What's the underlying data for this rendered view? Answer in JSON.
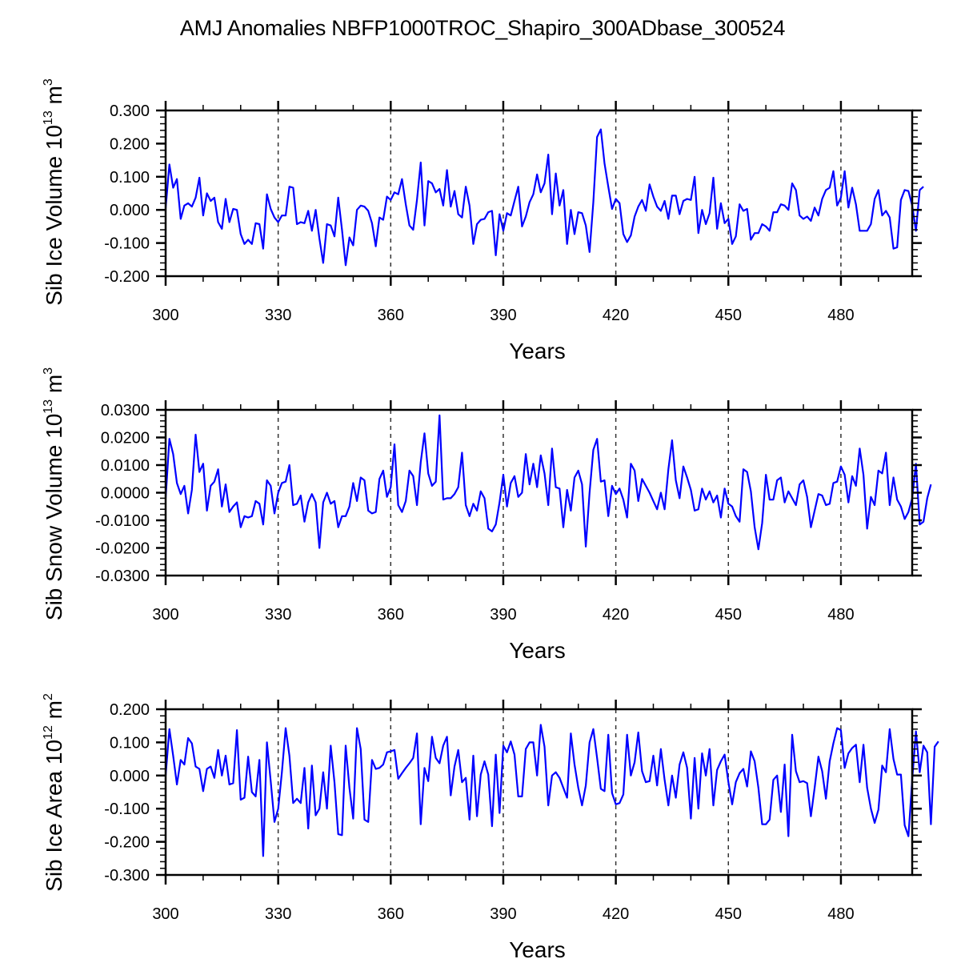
{
  "title": "AMJ Anomalies NBFP1000TROC_Shapiro_300ADbase_300524",
  "chart_data": [
    {
      "type": "line",
      "ylabel": "Sib Ice Volume 10",
      "ylabel_exp": "13",
      "ylabel_unit": " m",
      "ylabel_unit_exp": "3",
      "xlabel": "Years",
      "xlim": [
        300,
        499
      ],
      "ylim": [
        -0.2,
        0.3
      ],
      "yticks": [
        -0.2,
        -0.1,
        0.0,
        0.1,
        0.2,
        0.3
      ],
      "ytick_labels": [
        "-0.200",
        "-0.100",
        "0.000",
        "0.100",
        "0.200",
        "0.300"
      ],
      "xticks": [
        300,
        330,
        360,
        390,
        420,
        450,
        480
      ],
      "xtick_labels": [
        "300",
        "330",
        "360",
        "390",
        "420",
        "450",
        "480"
      ],
      "vlines": [
        330,
        360,
        390,
        420,
        450,
        480
      ],
      "line_color": "#0000ff",
      "x_start": 300,
      "values": [
        0.005,
        0.137,
        0.067,
        0.093,
        -0.027,
        0.013,
        0.02,
        0.01,
        0.037,
        0.097,
        -0.017,
        0.05,
        0.027,
        0.037,
        -0.037,
        -0.057,
        0.033,
        -0.037,
        0.003,
        0.0,
        -0.073,
        -0.103,
        -0.09,
        -0.103,
        -0.04,
        -0.043,
        -0.117,
        0.047,
        0.003,
        -0.023,
        -0.037,
        -0.017,
        -0.017,
        0.07,
        0.067,
        -0.043,
        -0.037,
        -0.04,
        -0.003,
        -0.063,
        0.0,
        -0.087,
        -0.16,
        -0.043,
        -0.047,
        -0.08,
        0.037,
        -0.06,
        -0.167,
        -0.083,
        -0.107,
        0.0,
        0.013,
        0.01,
        -0.003,
        -0.04,
        -0.11,
        -0.023,
        -0.03,
        0.04,
        0.03,
        0.053,
        0.047,
        0.093,
        0.017,
        -0.047,
        -0.06,
        0.03,
        0.143,
        -0.047,
        0.087,
        0.08,
        0.053,
        0.063,
        0.013,
        0.12,
        0.01,
        0.057,
        -0.013,
        -0.023,
        0.07,
        0.013,
        -0.103,
        -0.043,
        -0.03,
        -0.027,
        -0.007,
        -0.003,
        -0.137,
        -0.013,
        -0.063,
        -0.01,
        -0.017,
        0.027,
        0.07,
        -0.05,
        -0.02,
        0.023,
        0.047,
        0.107,
        0.053,
        0.08,
        0.167,
        -0.013,
        0.11,
        0.013,
        0.06,
        -0.103,
        0.0,
        -0.073,
        -0.007,
        -0.01,
        -0.047,
        -0.127,
        0.023,
        0.22,
        0.243,
        0.14,
        0.07,
        0.003,
        0.033,
        0.02,
        -0.073,
        -0.097,
        -0.077,
        -0.02,
        0.01,
        0.03,
        -0.003,
        0.077,
        0.04,
        0.01,
        -0.003,
        0.027,
        -0.027,
        0.043,
        0.043,
        -0.013,
        0.027,
        0.033,
        0.03,
        0.1,
        -0.07,
        0.0,
        -0.043,
        -0.01,
        0.097,
        -0.057,
        0.02,
        -0.04,
        -0.027,
        -0.103,
        -0.08,
        0.017,
        -0.003,
        0.003,
        -0.09,
        -0.07,
        -0.07,
        -0.043,
        -0.05,
        -0.063,
        -0.007,
        -0.007,
        0.017,
        0.013,
        0.0,
        0.08,
        0.06,
        -0.017,
        -0.027,
        -0.02,
        -0.033,
        0.007,
        -0.017,
        0.033,
        0.06,
        0.067,
        0.117,
        0.013,
        0.037,
        0.117,
        0.007,
        0.067,
        0.017,
        -0.063,
        -0.063,
        -0.063,
        -0.043,
        0.033,
        0.06,
        -0.017,
        -0.003,
        -0.023,
        -0.117,
        -0.113,
        0.03,
        0.06,
        0.057,
        0.013,
        -0.063,
        0.06,
        0.07
      ]
    },
    {
      "type": "line",
      "ylabel": "Sib Snow Volume 10",
      "ylabel_exp": "13",
      "ylabel_unit": " m",
      "ylabel_unit_exp": "3",
      "xlabel": "Years",
      "xlim": [
        300,
        499
      ],
      "ylim": [
        -0.03,
        0.03
      ],
      "yticks": [
        -0.03,
        -0.02,
        -0.01,
        0.0,
        0.01,
        0.02,
        0.03
      ],
      "ytick_labels": [
        "-0.0300",
        "-0.0200",
        "-0.0100",
        "0.0000",
        "0.0100",
        "0.0200",
        "0.0300"
      ],
      "xticks": [
        300,
        330,
        360,
        390,
        420,
        450,
        480
      ],
      "xtick_labels": [
        "300",
        "330",
        "360",
        "390",
        "420",
        "450",
        "480"
      ],
      "vlines": [
        330,
        360,
        390,
        420,
        450,
        480
      ],
      "line_color": "#0000ff",
      "x_start": 300,
      "values": [
        -0.002,
        0.0195,
        0.014,
        0.0035,
        -0.0005,
        0.0025,
        -0.0075,
        0.001,
        0.021,
        0.0075,
        0.0105,
        -0.0065,
        0.0025,
        0.004,
        0.0085,
        -0.005,
        0.003,
        -0.007,
        -0.005,
        -0.0035,
        -0.0125,
        -0.0085,
        -0.009,
        -0.0085,
        -0.003,
        -0.004,
        -0.0115,
        0.0045,
        0.0025,
        -0.0075,
        0.0,
        0.0035,
        0.004,
        0.01,
        -0.0045,
        -0.004,
        -0.001,
        -0.0105,
        -0.0035,
        -0.0005,
        -0.0035,
        -0.02,
        -0.0035,
        0.0,
        -0.004,
        -0.003,
        -0.0125,
        -0.0085,
        -0.0085,
        -0.005,
        0.0035,
        -0.003,
        0.0055,
        0.0045,
        -0.0065,
        -0.0075,
        -0.007,
        0.005,
        0.008,
        -0.0015,
        0.002,
        0.0175,
        -0.0045,
        -0.007,
        -0.003,
        0.008,
        0.006,
        -0.0045,
        0.011,
        0.0215,
        0.007,
        0.0025,
        0.004,
        0.028,
        -0.0025,
        -0.002,
        -0.002,
        -0.0005,
        0.002,
        0.0145,
        -0.0045,
        -0.0085,
        -0.004,
        -0.0065,
        0.0005,
        -0.002,
        -0.013,
        -0.014,
        -0.0115,
        -0.0035,
        0.0065,
        -0.005,
        0.0035,
        0.006,
        -0.0015,
        0.0,
        0.014,
        0.003,
        0.0105,
        0.002,
        0.0135,
        0.007,
        -0.0045,
        0.016,
        0.002,
        0.0015,
        -0.0125,
        0.001,
        -0.0065,
        0.0055,
        0.008,
        0.003,
        -0.0195,
        0.0,
        0.0155,
        0.0195,
        0.004,
        0.0045,
        -0.0085,
        0.0025,
        -0.0005,
        0.0015,
        -0.0025,
        -0.009,
        0.0105,
        0.008,
        -0.003,
        0.005,
        0.0025,
        0.0,
        -0.003,
        -0.006,
        0.0,
        -0.006,
        0.0085,
        0.019,
        0.0045,
        -0.002,
        0.0095,
        0.0055,
        0.001,
        -0.0065,
        -0.006,
        0.0015,
        -0.0025,
        0.0005,
        -0.0035,
        -0.001,
        -0.009,
        0.0015,
        -0.004,
        -0.005,
        -0.0085,
        -0.0105,
        0.0085,
        0.0075,
        0.0005,
        -0.0125,
        -0.0205,
        -0.011,
        0.0065,
        -0.0025,
        -0.0025,
        0.0045,
        0.0055,
        -0.0035,
        0.0005,
        -0.002,
        -0.0045,
        0.003,
        0.0045,
        -0.0015,
        -0.0125,
        -0.0065,
        -0.0005,
        -0.001,
        -0.0045,
        -0.004,
        0.0035,
        0.004,
        0.0095,
        0.0065,
        -0.0035,
        0.006,
        0.0025,
        0.016,
        0.0065,
        -0.013,
        -0.0015,
        -0.0045,
        0.008,
        0.007,
        0.0145,
        -0.0045,
        0.0055,
        -0.0025,
        -0.005,
        -0.0095,
        -0.007,
        -0.002,
        0.0105,
        -0.0115,
        -0.0105,
        -0.002,
        0.003
      ]
    },
    {
      "type": "line",
      "ylabel": "Sib Ice Area 10",
      "ylabel_exp": "12",
      "ylabel_unit": " m",
      "ylabel_unit_exp": "2",
      "xlabel": "Years",
      "xlim": [
        300,
        499
      ],
      "ylim": [
        -0.3,
        0.2
      ],
      "yticks": [
        -0.3,
        -0.2,
        -0.1,
        0.0,
        0.1,
        0.2
      ],
      "ytick_labels": [
        "-0.300",
        "-0.200",
        "-0.100",
        "0.000",
        "0.100",
        "0.200"
      ],
      "xticks": [
        300,
        330,
        360,
        390,
        420,
        450,
        480
      ],
      "xtick_labels": [
        "300",
        "330",
        "360",
        "390",
        "420",
        "450",
        "480"
      ],
      "vlines": [
        330,
        360,
        390,
        420,
        450,
        480
      ],
      "line_color": "#0000ff",
      "x_start": 300,
      "values": [
        0.0,
        0.14,
        0.06,
        -0.027,
        0.047,
        0.033,
        0.113,
        0.097,
        0.027,
        0.02,
        -0.047,
        0.02,
        0.027,
        -0.007,
        0.077,
        0.0,
        0.06,
        -0.027,
        -0.023,
        0.137,
        -0.073,
        -0.067,
        0.057,
        -0.05,
        -0.063,
        0.047,
        -0.243,
        0.1,
        -0.017,
        -0.14,
        -0.1,
        0.01,
        0.143,
        0.06,
        -0.083,
        -0.07,
        -0.083,
        0.023,
        -0.16,
        0.03,
        -0.12,
        -0.1,
        0.01,
        -0.1,
        0.09,
        -0.02,
        -0.177,
        -0.18,
        0.09,
        -0.037,
        -0.13,
        0.143,
        0.08,
        -0.133,
        -0.14,
        0.047,
        0.02,
        0.023,
        0.033,
        0.07,
        0.073,
        0.077,
        -0.01,
        0.007,
        0.023,
        0.037,
        0.053,
        0.127,
        -0.147,
        0.023,
        -0.017,
        0.117,
        0.053,
        0.037,
        0.09,
        0.117,
        -0.06,
        0.027,
        0.077,
        -0.02,
        -0.007,
        -0.133,
        0.06,
        -0.123,
        0.003,
        0.043,
        0.003,
        -0.153,
        0.063,
        -0.113,
        0.09,
        0.07,
        0.103,
        0.063,
        -0.063,
        -0.063,
        0.08,
        0.1,
        0.1,
        0.0,
        0.153,
        0.087,
        -0.09,
        0.0,
        0.01,
        -0.007,
        -0.037,
        -0.067,
        0.127,
        0.033,
        -0.037,
        -0.09,
        -0.03,
        0.1,
        0.14,
        0.053,
        -0.04,
        -0.047,
        0.123,
        -0.053,
        -0.087,
        -0.083,
        -0.057,
        0.123,
        0.0,
        0.04,
        0.13,
        0.013,
        -0.02,
        -0.017,
        0.06,
        -0.03,
        0.08,
        -0.013,
        -0.09,
        0.0,
        -0.067,
        0.033,
        0.07,
        0.023,
        -0.13,
        0.053,
        -0.1,
        0.067,
        0.0,
        0.08,
        -0.09,
        0.017,
        0.043,
        0.063,
        -0.02,
        -0.087,
        -0.02,
        0.007,
        0.02,
        -0.033,
        0.073,
        0.043,
        -0.037,
        -0.147,
        -0.147,
        -0.133,
        -0.013,
        0.0,
        -0.11,
        0.033,
        -0.183,
        0.123,
        0.013,
        -0.02,
        -0.017,
        -0.023,
        -0.123,
        -0.037,
        0.057,
        0.013,
        -0.07,
        0.043,
        0.097,
        0.143,
        0.137,
        0.023,
        0.067,
        0.083,
        0.093,
        -0.02,
        0.093,
        -0.037,
        -0.1,
        -0.143,
        -0.103,
        0.03,
        0.01,
        0.14,
        0.05,
        0.003,
        0.003,
        -0.15,
        -0.183,
        -0.013,
        0.133,
        0.01,
        0.09,
        0.07,
        -0.147,
        0.087,
        0.103
      ]
    }
  ]
}
